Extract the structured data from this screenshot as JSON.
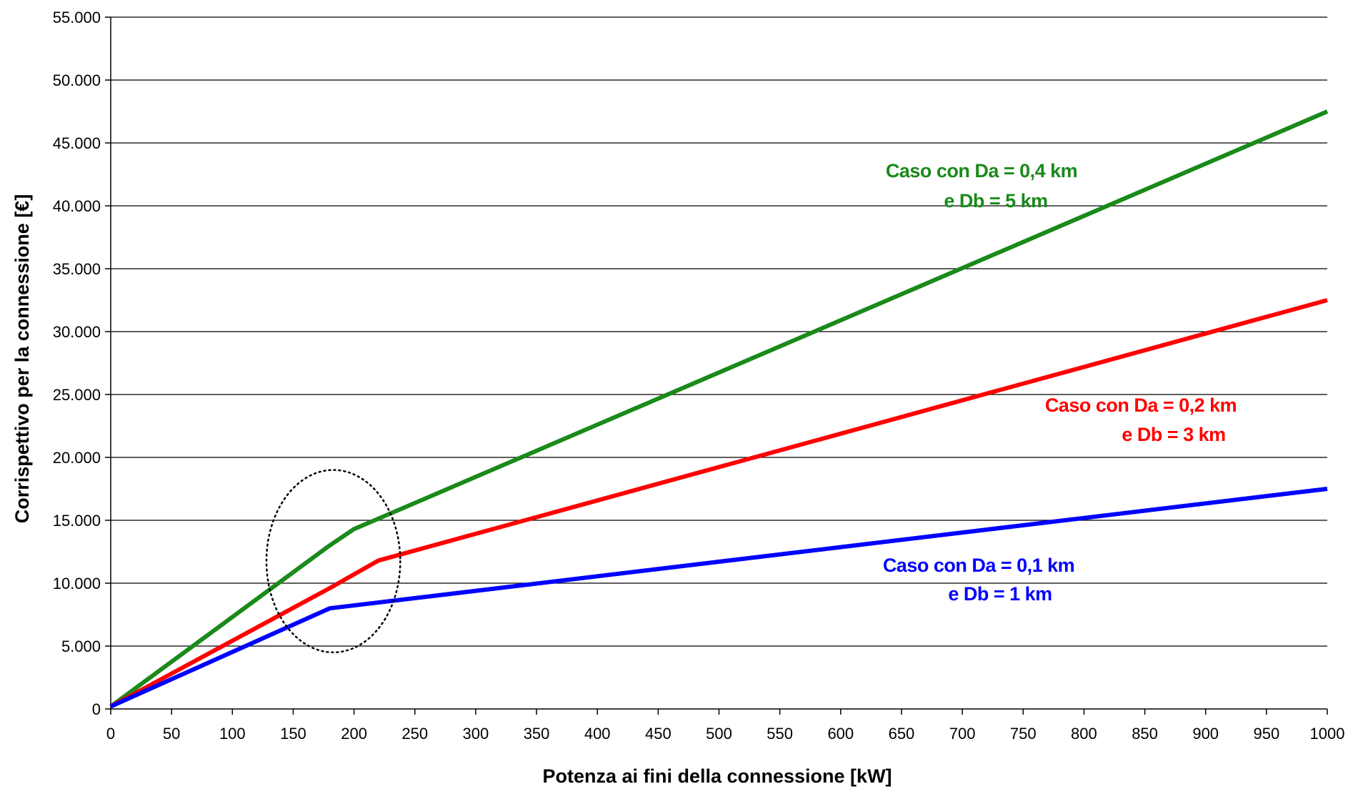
{
  "chart_data": {
    "type": "line",
    "title": "",
    "xlabel": "Potenza ai fini della connessione [kW]",
    "ylabel": "Corrispettivo per la connessione [€]",
    "xlim": [
      0,
      1000
    ],
    "ylim": [
      0,
      55000
    ],
    "x_ticks": [
      0,
      50,
      100,
      150,
      200,
      250,
      300,
      350,
      400,
      450,
      500,
      550,
      600,
      650,
      700,
      750,
      800,
      850,
      900,
      950,
      1000
    ],
    "x_tick_labels": [
      "0",
      "50",
      "100",
      "150",
      "200",
      "250",
      "300",
      "350",
      "400",
      "450",
      "500",
      "550",
      "600",
      "650",
      "700",
      "750",
      "800",
      "850",
      "900",
      "950",
      "1000"
    ],
    "y_ticks": [
      0,
      5000,
      10000,
      15000,
      20000,
      25000,
      30000,
      35000,
      40000,
      45000,
      50000,
      55000
    ],
    "y_tick_labels": [
      "0",
      "5.000",
      "10.000",
      "15.000",
      "20.000",
      "25.000",
      "30.000",
      "35.000",
      "40.000",
      "45.000",
      "50.000",
      "55.000"
    ],
    "grid": {
      "horizontal": true,
      "vertical": false
    },
    "legend": "none",
    "series": [
      {
        "color": "#1a8a1a",
        "label_lines": [
          "Caso con Da = 0,4 km",
          "e Db = 5 km"
        ],
        "points": [
          [
            0,
            200
          ],
          [
            180,
            13000
          ],
          [
            200,
            14300
          ],
          [
            1000,
            47500
          ]
        ]
      },
      {
        "color": "#ff0000",
        "label_lines": [
          "Caso con Da = 0,2 km",
          "e Db = 3 km"
        ],
        "points": [
          [
            0,
            200
          ],
          [
            180,
            9600
          ],
          [
            220,
            11800
          ],
          [
            1000,
            32500
          ]
        ]
      },
      {
        "color": "#0000ff",
        "label_lines": [
          "Caso con Da = 0,1 km",
          "e Db = 1 km"
        ],
        "points": [
          [
            0,
            200
          ],
          [
            180,
            8000
          ],
          [
            1000,
            17500
          ]
        ]
      }
    ],
    "annotations": [
      {
        "type": "dotted-ellipse",
        "center": [
          183,
          11750
        ],
        "radius_x": 55,
        "radius_y": 7250
      }
    ]
  }
}
